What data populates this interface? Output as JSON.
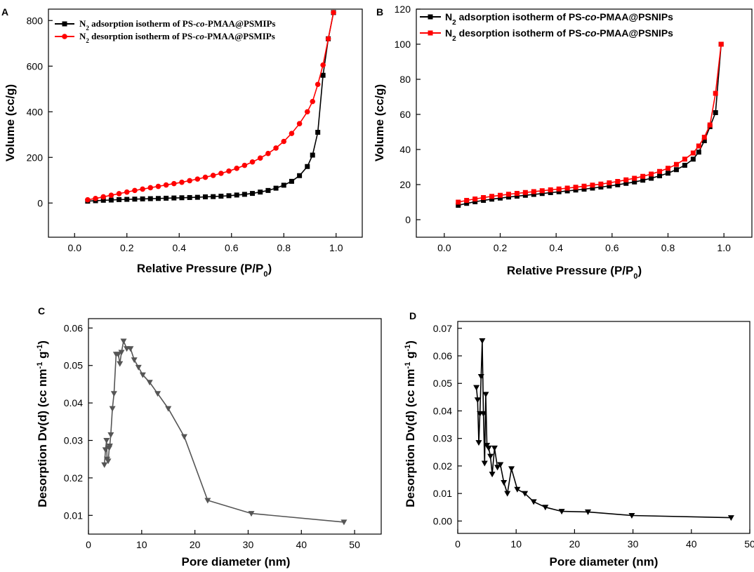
{
  "colors": {
    "black": "#000000",
    "red": "#ff0000",
    "gray": "#555555"
  },
  "chart_data": [
    {
      "panel": "A",
      "type": "line",
      "xlabel": "Relative Pressure (P/P0)",
      "xlabel_main": "Relative Pressure (P/P",
      "xlabel_sub": "0",
      "xlabel_end": ")",
      "ylabel": "Volume (cc/g)",
      "xlim": [
        -0.1,
        1.1
      ],
      "ylim": [
        -150,
        850
      ],
      "xticks": [
        0.0,
        0.2,
        0.4,
        0.6,
        0.8,
        1.0
      ],
      "xtick_labels": [
        "0.0",
        "0.2",
        "0.4",
        "0.6",
        "0.8",
        "1.0"
      ],
      "yticks": [
        0,
        200,
        400,
        600,
        800
      ],
      "ytick_labels": [
        "0",
        "200",
        "400",
        "600",
        "800"
      ],
      "legend_position": "top-left",
      "series": [
        {
          "name": "N2 adsorption isotherm of PS-co-PMAA@PSMIPs",
          "legend_pre": "N",
          "legend_sub": "2",
          "legend_mid": " adsorption isotherm of  PS-",
          "legend_ital": "co",
          "legend_post": "-PMAA@PSMIPs",
          "color": "#000000",
          "marker": "square",
          "x": [
            0.05,
            0.08,
            0.11,
            0.14,
            0.17,
            0.2,
            0.23,
            0.26,
            0.29,
            0.32,
            0.35,
            0.38,
            0.41,
            0.44,
            0.47,
            0.5,
            0.53,
            0.56,
            0.59,
            0.62,
            0.65,
            0.68,
            0.71,
            0.74,
            0.77,
            0.8,
            0.83,
            0.86,
            0.89,
            0.91,
            0.93,
            0.95,
            0.97,
            0.99
          ],
          "y": [
            8,
            10,
            12,
            13,
            15,
            16,
            17,
            18,
            19,
            20,
            21,
            22,
            23,
            24,
            25,
            27,
            28,
            30,
            32,
            35,
            38,
            42,
            48,
            55,
            65,
            78,
            95,
            120,
            160,
            210,
            310,
            560,
            720,
            835
          ]
        },
        {
          "name": "N2 desorption isotherm of PS-co-PMAA@PSMIPs",
          "legend_pre": "N",
          "legend_sub": "2",
          "legend_mid": " desorption isotherm of  PS-",
          "legend_ital": "co",
          "legend_post": "-PMAA@PSMIPs",
          "color": "#ff0000",
          "marker": "circle",
          "x": [
            0.05,
            0.08,
            0.11,
            0.14,
            0.17,
            0.2,
            0.23,
            0.26,
            0.29,
            0.32,
            0.35,
            0.38,
            0.41,
            0.44,
            0.47,
            0.5,
            0.53,
            0.56,
            0.59,
            0.62,
            0.65,
            0.68,
            0.71,
            0.74,
            0.77,
            0.8,
            0.83,
            0.86,
            0.89,
            0.91,
            0.93,
            0.95,
            0.97,
            0.99
          ],
          "y": [
            14,
            20,
            27,
            34,
            41,
            48,
            55,
            61,
            67,
            73,
            79,
            85,
            91,
            98,
            105,
            113,
            121,
            130,
            140,
            152,
            165,
            180,
            197,
            217,
            241,
            270,
            305,
            348,
            400,
            445,
            520,
            605,
            720,
            835
          ]
        }
      ]
    },
    {
      "panel": "B",
      "type": "line",
      "xlabel": "Relative Pressure (P/P0)",
      "xlabel_main": "Relative Pressure (P/P",
      "xlabel_sub": "0",
      "xlabel_end": ")",
      "ylabel": "Volume (cc/g)",
      "xlim": [
        -0.1,
        1.1
      ],
      "ylim": [
        -10,
        120
      ],
      "xticks": [
        0.0,
        0.2,
        0.4,
        0.6,
        0.8,
        1.0
      ],
      "xtick_labels": [
        "0.0",
        "0.2",
        "0.4",
        "0.6",
        "0.8",
        "1.0"
      ],
      "yticks": [
        0,
        20,
        40,
        60,
        80,
        100,
        120
      ],
      "ytick_labels": [
        "0",
        "20",
        "40",
        "60",
        "80",
        "100",
        "120"
      ],
      "legend_position": "top-left",
      "series": [
        {
          "name": "N2 adsorption isotherm of PS-co-PMAA@PSNIPs",
          "legend_pre": "N",
          "legend_sub": "2",
          "legend_mid": " adsorption isotherm of  PS-",
          "legend_ital": "co",
          "legend_post": "-PMAA@PSNIPs",
          "color": "#000000",
          "marker": "square",
          "x": [
            0.05,
            0.08,
            0.11,
            0.14,
            0.17,
            0.2,
            0.23,
            0.26,
            0.29,
            0.32,
            0.35,
            0.38,
            0.41,
            0.44,
            0.47,
            0.5,
            0.53,
            0.56,
            0.59,
            0.62,
            0.65,
            0.68,
            0.71,
            0.74,
            0.77,
            0.8,
            0.83,
            0.86,
            0.89,
            0.91,
            0.93,
            0.95,
            0.97,
            0.99
          ],
          "y": [
            8.2,
            9.3,
            10.2,
            11.0,
            11.7,
            12.3,
            12.9,
            13.4,
            13.9,
            14.4,
            14.9,
            15.4,
            15.9,
            16.4,
            16.9,
            17.4,
            18.0,
            18.6,
            19.2,
            19.9,
            20.7,
            21.5,
            22.5,
            23.6,
            25.0,
            26.5,
            28.5,
            31.0,
            34.5,
            38.5,
            45.0,
            53.0,
            61.0,
            100.0
          ]
        },
        {
          "name": "N2 desorption isotherm of PS-co-PMAA@PSNIPs",
          "legend_pre": "N",
          "legend_sub": "2",
          "legend_mid": " desorption isotherm of  PS-",
          "legend_ital": "co",
          "legend_post": "-PMAA@PSNIPs",
          "color": "#ff0000",
          "marker": "square",
          "x": [
            0.05,
            0.08,
            0.11,
            0.14,
            0.17,
            0.2,
            0.23,
            0.26,
            0.29,
            0.32,
            0.35,
            0.38,
            0.41,
            0.44,
            0.47,
            0.5,
            0.53,
            0.56,
            0.59,
            0.62,
            0.65,
            0.68,
            0.71,
            0.74,
            0.77,
            0.8,
            0.83,
            0.86,
            0.89,
            0.91,
            0.93,
            0.95,
            0.97,
            0.99
          ],
          "y": [
            10.0,
            11.0,
            11.8,
            12.6,
            13.3,
            13.9,
            14.5,
            15.0,
            15.5,
            16.0,
            16.5,
            17.0,
            17.5,
            18.0,
            18.5,
            19.1,
            19.7,
            20.3,
            21.0,
            21.8,
            22.7,
            23.6,
            24.7,
            26.0,
            27.5,
            29.3,
            31.5,
            34.5,
            38.0,
            42.0,
            47.0,
            54.0,
            72.0,
            100.0
          ]
        }
      ]
    },
    {
      "panel": "C",
      "type": "line",
      "xlabel": "Pore diameter (nm)",
      "ylabel": "Desorption Dv(d) (cc nm-1 g-1)",
      "ylabel_main": "Desorption Dv(d) (cc nm",
      "ylabel_sup1": "-1",
      "ylabel_mid": " g",
      "ylabel_sup2": "-1",
      "ylabel_end": ")",
      "xlim": [
        0,
        55
      ],
      "ylim": [
        0.005,
        0.0625
      ],
      "xticks": [
        0,
        10,
        20,
        30,
        40,
        50
      ],
      "xtick_labels": [
        "0",
        "10",
        "20",
        "30",
        "40",
        "50"
      ],
      "yticks": [
        0.01,
        0.02,
        0.03,
        0.04,
        0.05,
        0.06
      ],
      "ytick_labels": [
        "0.01",
        "0.02",
        "0.03",
        "0.04",
        "0.05",
        "0.06"
      ],
      "series": [
        {
          "name": "Desorption Dv(d)",
          "color": "#555555",
          "marker": "triangle-down",
          "x": [
            3.0,
            3.2,
            3.4,
            3.5,
            3.7,
            3.9,
            4.0,
            4.2,
            4.5,
            4.8,
            5.2,
            5.6,
            5.9,
            6.2,
            6.6,
            7.2,
            7.9,
            8.6,
            9.4,
            10.2,
            11.5,
            13.0,
            15.0,
            18.0,
            22.4,
            30.6,
            48.0
          ],
          "y": [
            0.0235,
            0.0275,
            0.03,
            0.025,
            0.0245,
            0.028,
            0.0285,
            0.0315,
            0.0385,
            0.0425,
            0.053,
            0.053,
            0.0505,
            0.0535,
            0.0565,
            0.0545,
            0.0545,
            0.0515,
            0.0495,
            0.0475,
            0.0455,
            0.0425,
            0.0385,
            0.031,
            0.014,
            0.0105,
            0.0082
          ]
        }
      ]
    },
    {
      "panel": "D",
      "type": "line",
      "xlabel": "Pore diameter (nm)",
      "ylabel": "Desorption Dv(d) (cc nm-1 g-1)",
      "ylabel_main": "Desorption Dv(d) (cc nm",
      "ylabel_sup1": "-1",
      "ylabel_mid": " g",
      "ylabel_sup2": "-1",
      "ylabel_end": ")",
      "xlim": [
        0,
        50
      ],
      "ylim": [
        -0.0045,
        0.0725
      ],
      "xticks": [
        0,
        10,
        20,
        30,
        40,
        50
      ],
      "xtick_labels": [
        "0",
        "10",
        "20",
        "30",
        "40",
        "50"
      ],
      "yticks": [
        0.0,
        0.01,
        0.02,
        0.03,
        0.04,
        0.05,
        0.06,
        0.07
      ],
      "ytick_labels": [
        "0.00",
        "0.01",
        "0.02",
        "0.03",
        "0.04",
        "0.05",
        "0.06",
        "0.07"
      ],
      "series": [
        {
          "name": "Desorption Dv(d)",
          "color": "#000000",
          "marker": "triangle-down",
          "x": [
            3.2,
            3.4,
            3.6,
            3.8,
            4.0,
            4.2,
            4.4,
            4.6,
            4.8,
            5.0,
            5.3,
            5.6,
            5.9,
            6.3,
            6.8,
            7.3,
            7.9,
            8.5,
            9.2,
            10.2,
            11.5,
            13.0,
            15.0,
            17.8,
            22.3,
            29.8,
            46.8
          ],
          "y": [
            0.0485,
            0.044,
            0.0285,
            0.039,
            0.0525,
            0.0655,
            0.039,
            0.021,
            0.046,
            0.0275,
            0.0265,
            0.0235,
            0.017,
            0.0265,
            0.0195,
            0.0205,
            0.014,
            0.01,
            0.019,
            0.0115,
            0.01,
            0.007,
            0.005,
            0.0035,
            0.0033,
            0.002,
            0.0012
          ]
        }
      ]
    }
  ]
}
